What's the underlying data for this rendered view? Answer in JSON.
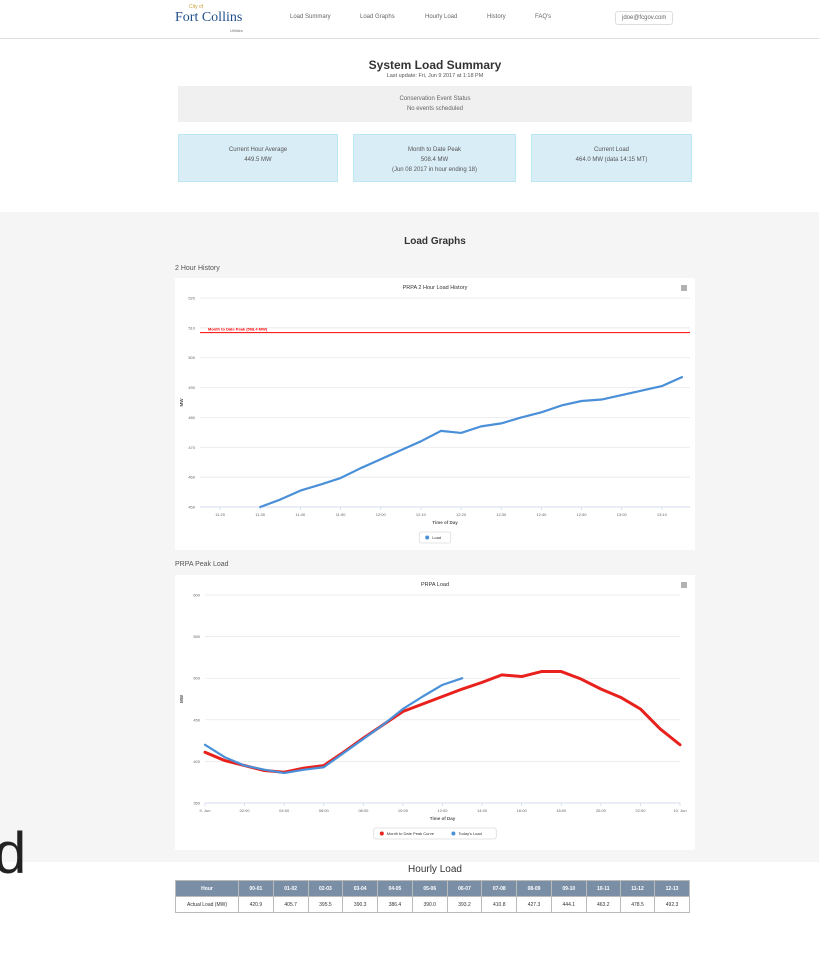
{
  "header": {
    "logo_small": "City of",
    "logo": "Fort Collins",
    "logo_sub": "Utilities",
    "nav": [
      "Load Summary",
      "Load Graphs",
      "Hourly Load",
      "History",
      "FAQ's"
    ],
    "user": "jdoe@fcgov.com"
  },
  "summary": {
    "title": "System Load Summary",
    "updated": "Last update: Fri, Jun 9 2017 at 1:18 PM",
    "event_title": "Conservation Event Status",
    "event_text": "No events scheduled",
    "boxes": [
      {
        "title": "Current Hour Average",
        "lines": [
          "449.5 MW"
        ]
      },
      {
        "title": "Month to Date Peak",
        "lines": [
          "508.4 MW",
          "(Jun 08 2017 in hour ending 18)"
        ]
      },
      {
        "title": "Current Load",
        "lines": [
          "464.0 MW (data 14:15 MT)"
        ]
      }
    ]
  },
  "graphs": {
    "title": "Load Graphs",
    "section_labels": [
      "2 Hour History",
      "PRPA Peak Load"
    ]
  },
  "chart_data": [
    {
      "type": "line",
      "title": "PRPA 2 Hour Load History",
      "xlabel": "Time of Day",
      "ylabel": "MW",
      "x": [
        690,
        695,
        700,
        705,
        710,
        715,
        720,
        725,
        730,
        735,
        740,
        745,
        750,
        755,
        760,
        765,
        770,
        775,
        780,
        785,
        790,
        795
      ],
      "series": [
        {
          "name": "Load",
          "color": "#4a90d9",
          "values": [
            450,
            452.5,
            455.5,
            457.5,
            459.7,
            463,
            466,
            469,
            472,
            475.5,
            474.8,
            477,
            478,
            480,
            481.7,
            484,
            485.5,
            486,
            487.5,
            489,
            490.5,
            493.5
          ]
        }
      ],
      "xlim": [
        675,
        797
      ],
      "ylim": [
        450,
        520
      ],
      "xticks": [
        {
          "value": 680,
          "label": "11:20"
        },
        {
          "value": 690,
          "label": "11:30"
        },
        {
          "value": 700,
          "label": "11:40"
        },
        {
          "value": 710,
          "label": "11:50"
        },
        {
          "value": 720,
          "label": "12:00"
        },
        {
          "value": 730,
          "label": "12:10"
        },
        {
          "value": 740,
          "label": "12:20"
        },
        {
          "value": 750,
          "label": "12:30"
        },
        {
          "value": 760,
          "label": "12:40"
        },
        {
          "value": 770,
          "label": "12:50"
        },
        {
          "value": 780,
          "label": "13:00"
        },
        {
          "value": 790,
          "label": "13:10"
        }
      ],
      "yticks": [
        450,
        460,
        470,
        480,
        490,
        500,
        510,
        520
      ],
      "grid": true,
      "annotations": [
        {
          "label": "Month to Date Peak (508.4 MW)",
          "y": 508.4,
          "color": "#ff0000"
        }
      ]
    },
    {
      "type": "line",
      "title": "PRPA Load",
      "xlabel": "Time of Day",
      "ylabel": "MW",
      "x": [
        0,
        1,
        2,
        3,
        4,
        5,
        6,
        7,
        8,
        9,
        10,
        11,
        12,
        13,
        14,
        15,
        16,
        17,
        18,
        19,
        20,
        21,
        22,
        23,
        24
      ],
      "series": [
        {
          "name": "Month to Date Peak Curve",
          "color": "#e8211d",
          "values": [
            411,
            401,
            395,
            389,
            387,
            392,
            395,
            411,
            428,
            444,
            460,
            469,
            478,
            487,
            495,
            504,
            502,
            508,
            508,
            499,
            487,
            477,
            463,
            439,
            420
          ]
        },
        {
          "name": "Today's Load",
          "color": "#4a90d9",
          "values": [
            420,
            405,
            395,
            390,
            386,
            390,
            393,
            410,
            427,
            444,
            463,
            478,
            492,
            500,
            null,
            null,
            null,
            null,
            null,
            null,
            null,
            null,
            null,
            null,
            null
          ]
        }
      ],
      "xlim": [
        0,
        24
      ],
      "ylim": [
        350,
        600
      ],
      "xticks": [
        {
          "value": 0,
          "label": "9. Jun"
        },
        {
          "value": 2,
          "label": "02:00"
        },
        {
          "value": 4,
          "label": "04:00"
        },
        {
          "value": 6,
          "label": "06:00"
        },
        {
          "value": 8,
          "label": "08:00"
        },
        {
          "value": 10,
          "label": "10:00"
        },
        {
          "value": 12,
          "label": "12:00"
        },
        {
          "value": 14,
          "label": "14:00"
        },
        {
          "value": 16,
          "label": "16:00"
        },
        {
          "value": 18,
          "label": "18:00"
        },
        {
          "value": 20,
          "label": "20:00"
        },
        {
          "value": 22,
          "label": "22:00"
        },
        {
          "value": 24,
          "label": "10. Jun"
        }
      ],
      "yticks": [
        350,
        400,
        450,
        500,
        550,
        600
      ],
      "grid": true
    }
  ],
  "hourly": {
    "title": "Hourly Load",
    "header": [
      "Hour",
      "00-01",
      "01-02",
      "02-03",
      "03-04",
      "04-05",
      "05-06",
      "06-07",
      "07-08",
      "08-09",
      "09-10",
      "10-11",
      "11-12",
      "12-13"
    ],
    "row": [
      "Actual Load (MW)",
      "420.9",
      "405.7",
      "395.5",
      "390.3",
      "386.4",
      "390.0",
      "393.2",
      "410.8",
      "427.3",
      "444.1",
      "463.2",
      "478.5",
      "492.3"
    ]
  },
  "fragment": "d"
}
